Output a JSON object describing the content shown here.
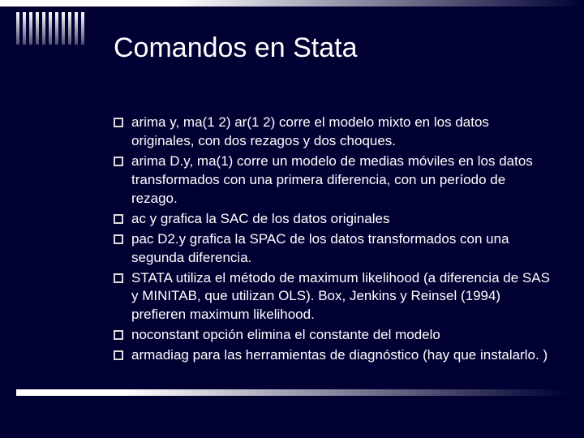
{
  "title": "Comandos en Stata",
  "items": [
    {
      "text": "arima y, ma(1 2) ar(1 2)   corre el modelo mixto en los datos originales, con dos rezagos y dos choques."
    },
    {
      "text": "arima D.y, ma(1)  corre un modelo de medias móviles en los datos transformados con una primera diferencia, con un período de rezago."
    },
    {
      "text": "ac y  grafica la SAC de los datos originales"
    },
    {
      "text": "pac D2.y  grafica la SPAC de los datos transformados con una segunda diferencia."
    },
    {
      "text": "STATA utiliza el método de maximum likelihood (a diferencia de SAS y MINITAB, que utilizan OLS).  Box, Jenkins y Reinsel (1994) prefieren maximum likelihood."
    },
    {
      "text": "noconstant opción elimina el constante del modelo"
    },
    {
      "text": "armadiag para las herramientas de diagnóstico (hay que instalarlo. )"
    }
  ],
  "colors": {
    "background": "#000033",
    "text": "#ffffff"
  }
}
